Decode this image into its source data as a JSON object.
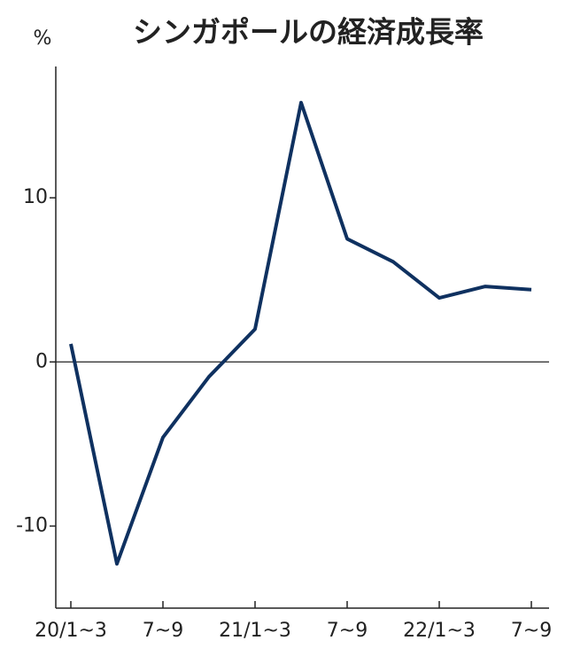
{
  "chart_data": {
    "type": "line",
    "title": "シンガポールの経済成長率",
    "y_label": "%",
    "categories": [
      "20/1~3",
      null,
      "7~9",
      null,
      "21/1~3",
      null,
      "7~9",
      null,
      "22/1~3",
      null,
      "7~9"
    ],
    "values": [
      1.1,
      -12.3,
      -4.6,
      -0.9,
      2.0,
      15.8,
      7.5,
      6.1,
      3.9,
      4.6,
      4.4
    ],
    "color": "#0f3160",
    "ylim": [
      -15,
      18
    ],
    "yticks": [
      -10,
      0,
      10
    ]
  }
}
